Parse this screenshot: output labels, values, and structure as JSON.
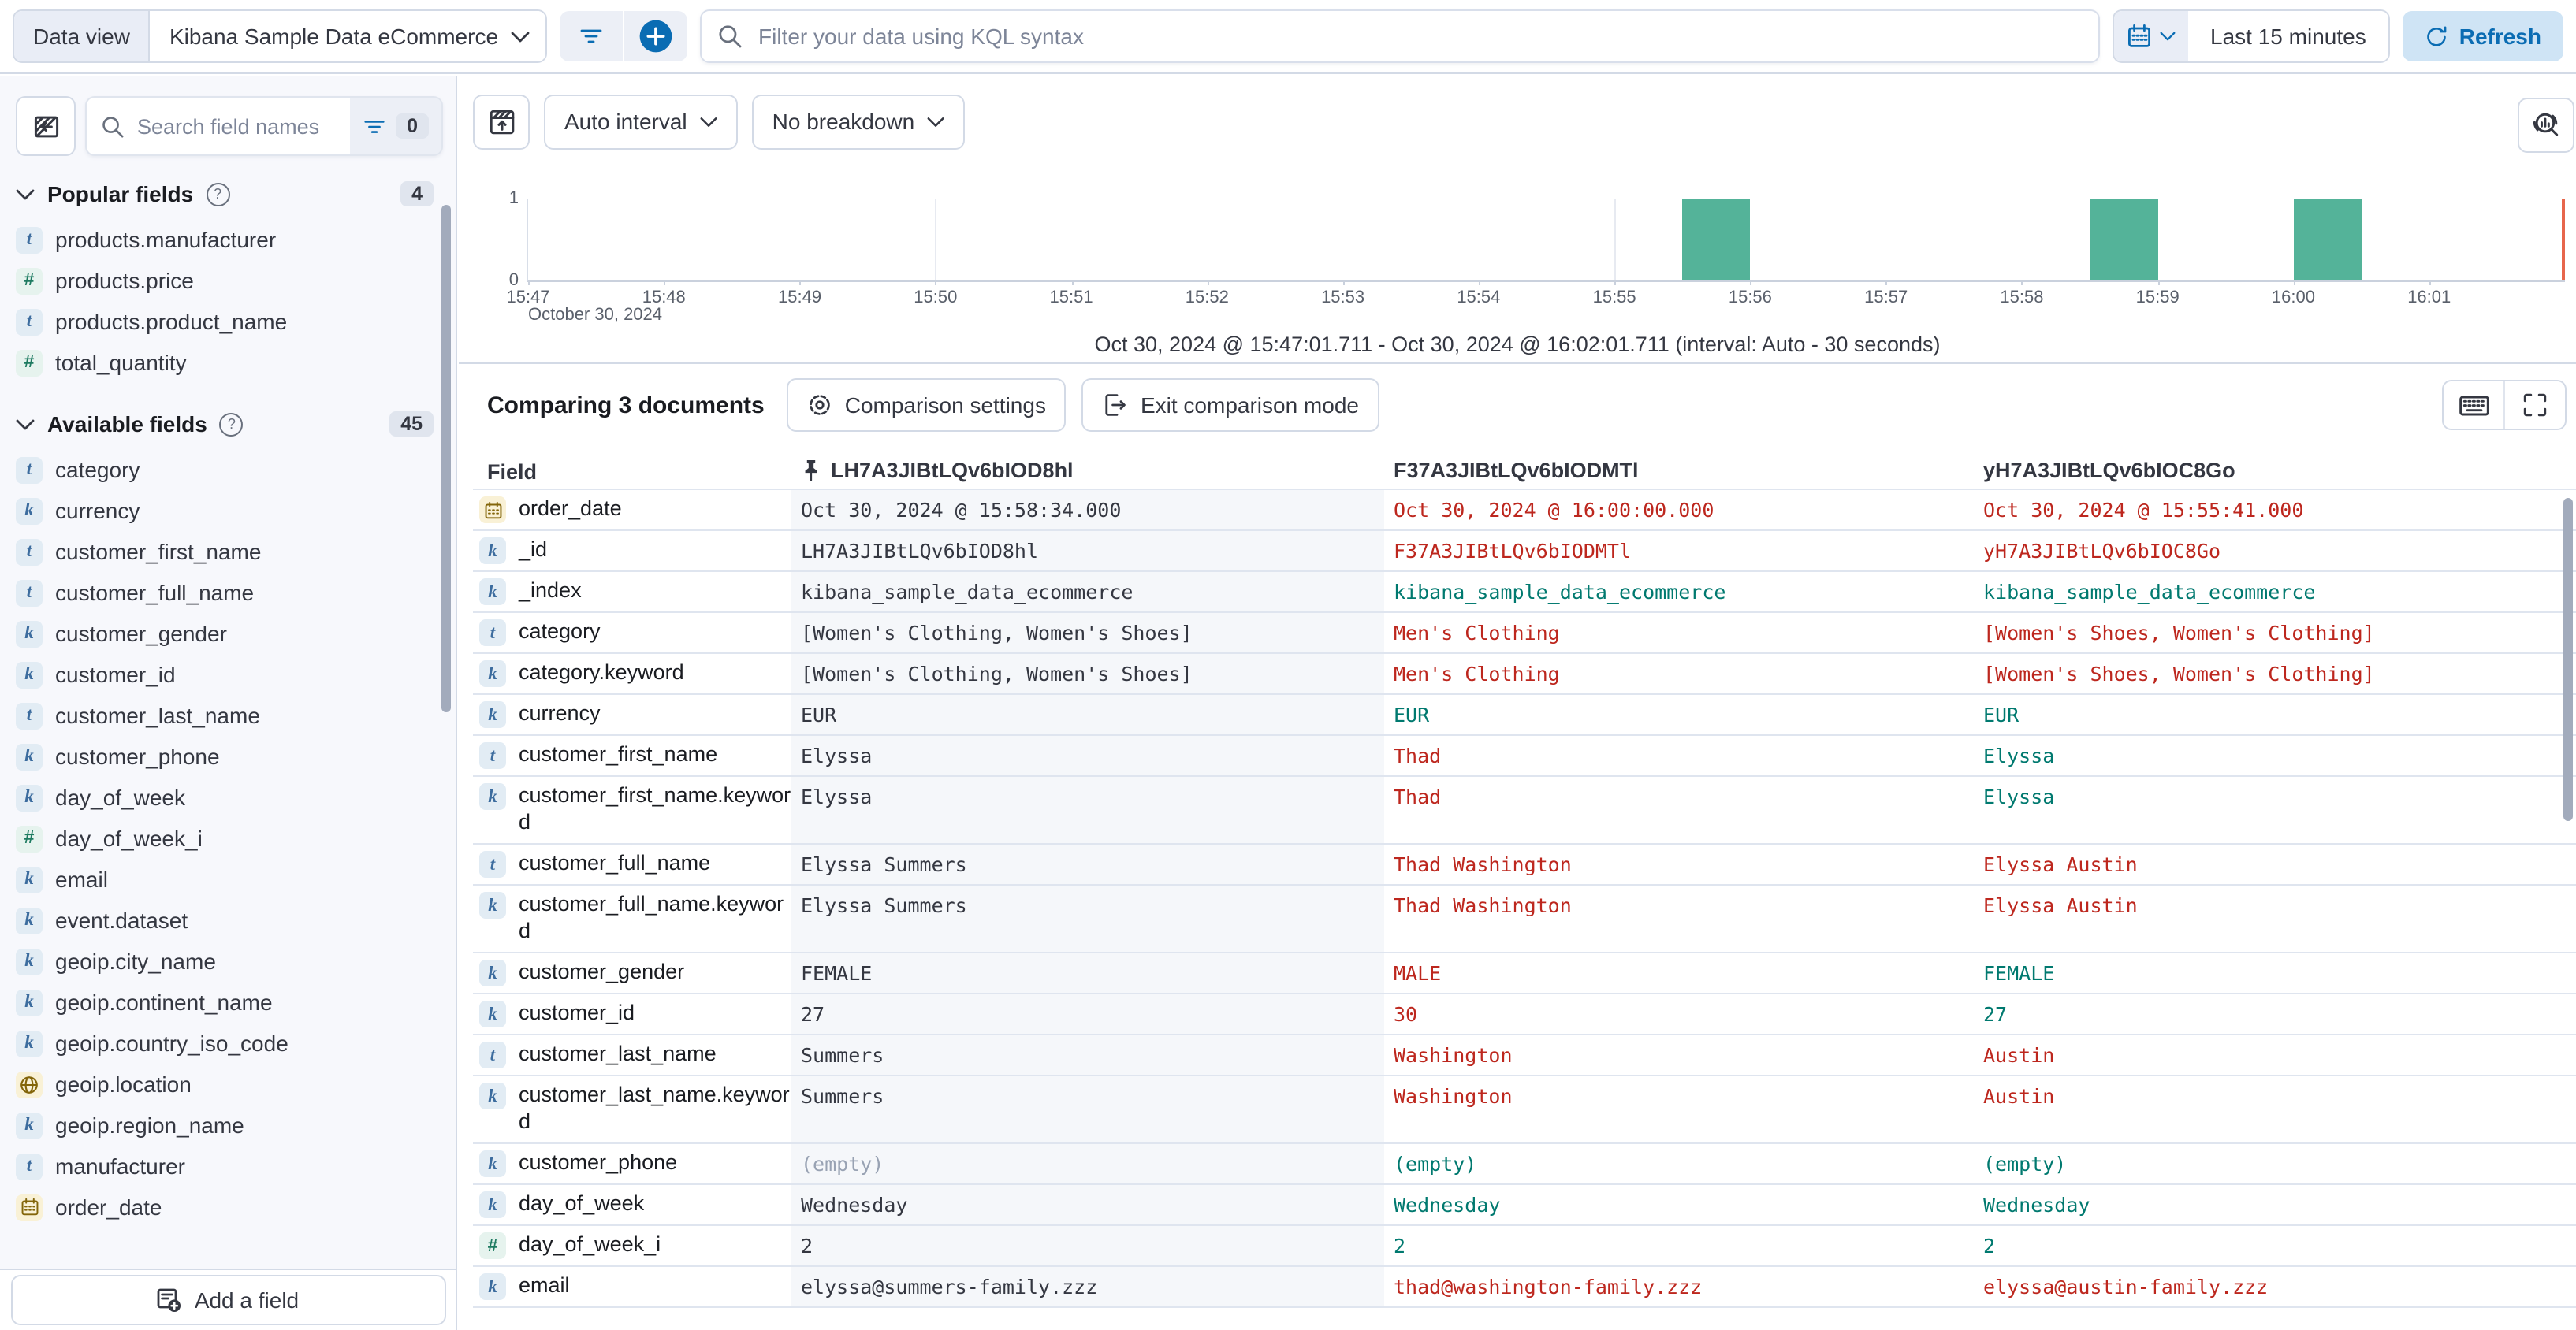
{
  "ui": {
    "question_glyph": "?"
  },
  "topbar": {
    "data_view_label": "Data view",
    "data_view_value": "Kibana Sample Data eCommerce",
    "kql_placeholder": "Filter your data using KQL syntax",
    "time_range": "Last 15 minutes",
    "refresh_label": "Refresh"
  },
  "sidebar": {
    "search_placeholder": "Search field names",
    "filter_count": "0",
    "popular": {
      "label": "Popular fields",
      "count": "4",
      "items": [
        {
          "type": "t",
          "name": "products.manufacturer"
        },
        {
          "type": "n",
          "name": "products.price"
        },
        {
          "type": "t",
          "name": "products.product_name"
        },
        {
          "type": "n",
          "name": "total_quantity"
        }
      ]
    },
    "available": {
      "label": "Available fields",
      "count": "45",
      "items": [
        {
          "type": "t",
          "name": "category"
        },
        {
          "type": "k",
          "name": "currency"
        },
        {
          "type": "t",
          "name": "customer_first_name"
        },
        {
          "type": "t",
          "name": "customer_full_name"
        },
        {
          "type": "k",
          "name": "customer_gender"
        },
        {
          "type": "k",
          "name": "customer_id"
        },
        {
          "type": "t",
          "name": "customer_last_name"
        },
        {
          "type": "k",
          "name": "customer_phone"
        },
        {
          "type": "k",
          "name": "day_of_week"
        },
        {
          "type": "n",
          "name": "day_of_week_i"
        },
        {
          "type": "k",
          "name": "email"
        },
        {
          "type": "k",
          "name": "event.dataset"
        },
        {
          "type": "k",
          "name": "geoip.city_name"
        },
        {
          "type": "k",
          "name": "geoip.continent_name"
        },
        {
          "type": "k",
          "name": "geoip.country_iso_code"
        },
        {
          "type": "geo",
          "name": "geoip.location"
        },
        {
          "type": "k",
          "name": "geoip.region_name"
        },
        {
          "type": "t",
          "name": "manufacturer"
        },
        {
          "type": "date",
          "name": "order_date"
        }
      ]
    },
    "add_field_label": "Add a field"
  },
  "chart_toolbar": {
    "interval_label": "Auto interval",
    "breakdown_label": "No breakdown"
  },
  "chart_data": {
    "type": "bar",
    "x_ticks": [
      "15:47",
      "15:48",
      "15:49",
      "15:50",
      "15:51",
      "15:52",
      "15:53",
      "15:54",
      "15:55",
      "15:56",
      "15:57",
      "15:58",
      "15:59",
      "16:00",
      "16:01"
    ],
    "x_date_label": "October 30, 2024",
    "y_ticks": [
      "1",
      "0"
    ],
    "ylim": [
      0,
      1
    ],
    "axis_start": "15:47:00",
    "axis_end": "16:02:00",
    "bar_seconds": 30,
    "bars": [
      {
        "start": "15:55:30",
        "value": 1
      },
      {
        "start": "15:58:30",
        "value": 1
      },
      {
        "start": "16:00:00",
        "value": 1
      }
    ],
    "gridlines": [
      "15:50",
      "15:55",
      "16:00"
    ],
    "bar_color": "#54b399",
    "end_line_color": "#e7664c",
    "caption": "Oct 30, 2024 @ 15:47:01.711 - Oct 30, 2024 @ 16:02:01.711 (interval: Auto - 30 seconds)"
  },
  "comparison": {
    "title": "Comparing 3 documents",
    "settings_label": "Comparison settings",
    "exit_label": "Exit comparison mode"
  },
  "table": {
    "field_header": "Field",
    "doc_headers": [
      {
        "id": "LH7A3JIBtLQv6bIOD8hl",
        "pinned": true
      },
      {
        "id": "F37A3JIBtLQv6bIODMTl",
        "pinned": false
      },
      {
        "id": "yH7A3JIBtLQv6bIOC8Go",
        "pinned": false
      }
    ],
    "rows": [
      {
        "icon": "date",
        "field": "order_date",
        "tall": false,
        "cells": [
          {
            "t": "Oct 30, 2024 @ 15:58:34.000",
            "s": "base"
          },
          {
            "t": "Oct 30, 2024 @ 16:00:00.000",
            "s": "diff"
          },
          {
            "t": "Oct 30, 2024 @ 15:55:41.000",
            "s": "diff"
          }
        ]
      },
      {
        "icon": "k",
        "field": "_id",
        "tall": false,
        "cells": [
          {
            "t": "LH7A3JIBtLQv6bIOD8hl",
            "s": "base"
          },
          {
            "t": "F37A3JIBtLQv6bIODMTl",
            "s": "diff"
          },
          {
            "t": "yH7A3JIBtLQv6bIOC8Go",
            "s": "diff"
          }
        ]
      },
      {
        "icon": "k",
        "field": "_index",
        "tall": false,
        "cells": [
          {
            "t": "kibana_sample_data_ecommerce",
            "s": "base"
          },
          {
            "t": "kibana_sample_data_ecommerce",
            "s": "same"
          },
          {
            "t": "kibana_sample_data_ecommerce",
            "s": "same"
          }
        ]
      },
      {
        "icon": "t",
        "field": "category",
        "tall": false,
        "cells": [
          {
            "t": "[Women's Clothing, Women's Shoes]",
            "s": "base"
          },
          {
            "t": "Men's Clothing",
            "s": "diff"
          },
          {
            "t": "[Women's Shoes, Women's Clothing]",
            "s": "diff"
          }
        ]
      },
      {
        "icon": "k",
        "field": "category.keyword",
        "tall": false,
        "cells": [
          {
            "t": "[Women's Clothing, Women's Shoes]",
            "s": "base"
          },
          {
            "t": "Men's Clothing",
            "s": "diff"
          },
          {
            "t": "[Women's Shoes, Women's Clothing]",
            "s": "diff"
          }
        ]
      },
      {
        "icon": "k",
        "field": "currency",
        "tall": false,
        "cells": [
          {
            "t": "EUR",
            "s": "base"
          },
          {
            "t": "EUR",
            "s": "same"
          },
          {
            "t": "EUR",
            "s": "same"
          }
        ]
      },
      {
        "icon": "t",
        "field": "customer_first_name",
        "tall": false,
        "cells": [
          {
            "t": "Elyssa",
            "s": "base"
          },
          {
            "t": "Thad",
            "s": "diff"
          },
          {
            "t": "Elyssa",
            "s": "same"
          }
        ]
      },
      {
        "icon": "k",
        "field": "customer_first_name.keyword",
        "tall": true,
        "cells": [
          {
            "t": "Elyssa",
            "s": "base"
          },
          {
            "t": "Thad",
            "s": "diff"
          },
          {
            "t": "Elyssa",
            "s": "same"
          }
        ]
      },
      {
        "icon": "t",
        "field": "customer_full_name",
        "tall": false,
        "cells": [
          {
            "t": "Elyssa Summers",
            "s": "base"
          },
          {
            "t": "Thad Washington",
            "s": "diff"
          },
          {
            "t": "Elyssa Austin",
            "s": "diff"
          }
        ]
      },
      {
        "icon": "k",
        "field": "customer_full_name.keyword",
        "tall": true,
        "cells": [
          {
            "t": "Elyssa Summers",
            "s": "base"
          },
          {
            "t": "Thad Washington",
            "s": "diff"
          },
          {
            "t": "Elyssa Austin",
            "s": "diff"
          }
        ]
      },
      {
        "icon": "k",
        "field": "customer_gender",
        "tall": false,
        "cells": [
          {
            "t": "FEMALE",
            "s": "base"
          },
          {
            "t": "MALE",
            "s": "diff"
          },
          {
            "t": "FEMALE",
            "s": "same"
          }
        ]
      },
      {
        "icon": "k",
        "field": "customer_id",
        "tall": false,
        "cells": [
          {
            "t": "27",
            "s": "base"
          },
          {
            "t": "30",
            "s": "diff"
          },
          {
            "t": "27",
            "s": "same"
          }
        ]
      },
      {
        "icon": "t",
        "field": "customer_last_name",
        "tall": false,
        "cells": [
          {
            "t": "Summers",
            "s": "base"
          },
          {
            "t": "Washington",
            "s": "diff"
          },
          {
            "t": "Austin",
            "s": "diff"
          }
        ]
      },
      {
        "icon": "k",
        "field": "customer_last_name.keyword",
        "tall": true,
        "cells": [
          {
            "t": "Summers",
            "s": "base"
          },
          {
            "t": "Washington",
            "s": "diff"
          },
          {
            "t": "Austin",
            "s": "diff"
          }
        ]
      },
      {
        "icon": "k",
        "field": "customer_phone",
        "tall": false,
        "cells": [
          {
            "t": "(empty)",
            "s": "muted"
          },
          {
            "t": "(empty)",
            "s": "same"
          },
          {
            "t": "(empty)",
            "s": "same"
          }
        ]
      },
      {
        "icon": "k",
        "field": "day_of_week",
        "tall": false,
        "cells": [
          {
            "t": "Wednesday",
            "s": "base"
          },
          {
            "t": "Wednesday",
            "s": "same"
          },
          {
            "t": "Wednesday",
            "s": "same"
          }
        ]
      },
      {
        "icon": "n",
        "field": "day_of_week_i",
        "tall": false,
        "cells": [
          {
            "t": "2",
            "s": "base"
          },
          {
            "t": "2",
            "s": "same"
          },
          {
            "t": "2",
            "s": "same"
          }
        ]
      },
      {
        "icon": "k",
        "field": "email",
        "tall": false,
        "cells": [
          {
            "t": "elyssa@summers-family.zzz",
            "s": "base"
          },
          {
            "t": "thad@washington-family.zzz",
            "s": "diff"
          },
          {
            "t": "elyssa@austin-family.zzz",
            "s": "diff"
          }
        ]
      }
    ]
  }
}
